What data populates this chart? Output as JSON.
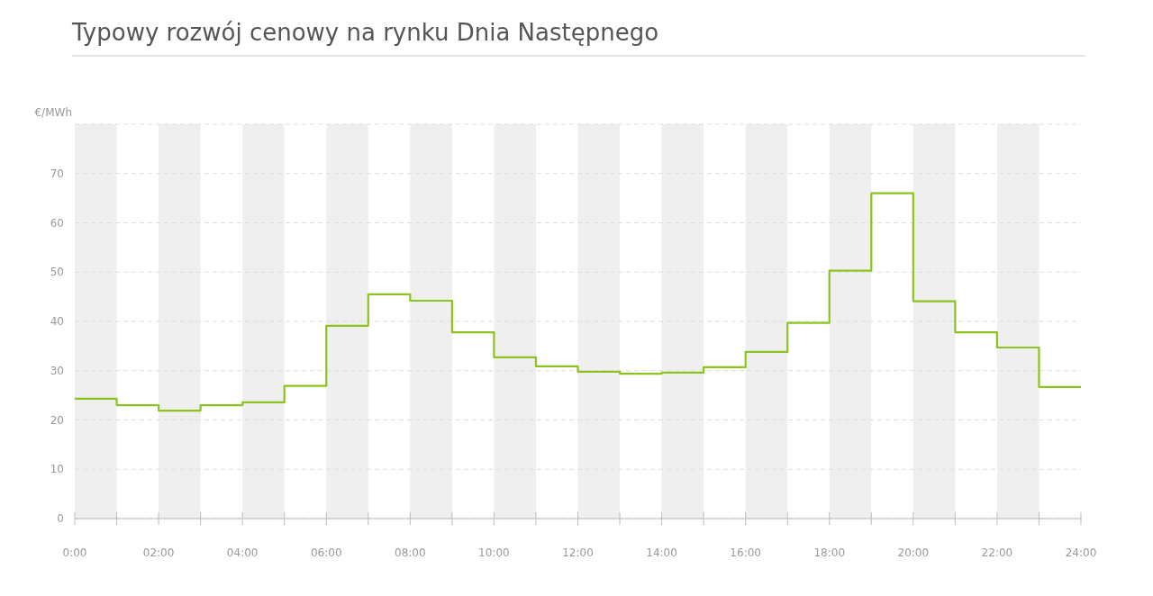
{
  "chart_data": {
    "type": "step",
    "title": "Typowy rozwój cenowy na rynku Dnia Następnego",
    "ylabel": "€/MWh",
    "x": [
      0,
      1,
      2,
      3,
      4,
      5,
      6,
      7,
      8,
      9,
      10,
      11,
      12,
      13,
      14,
      15,
      16,
      17,
      18,
      19,
      20,
      21,
      22,
      23,
      24
    ],
    "series": [
      {
        "color": "#8cc31e",
        "values": [
          24.3,
          23.0,
          21.9,
          23.0,
          23.6,
          26.9,
          39.1,
          45.5,
          44.2,
          37.8,
          32.7,
          30.9,
          29.8,
          29.4,
          29.6,
          30.7,
          33.8,
          39.7,
          50.3,
          66.0,
          44.1,
          37.8,
          34.7,
          26.7,
          26.7
        ]
      }
    ],
    "xlim": [
      0,
      24
    ],
    "xticks": [
      {
        "value": 0,
        "label": "0:00"
      },
      {
        "value": 1,
        "label": null
      },
      {
        "value": 2,
        "label": "02:00"
      },
      {
        "value": 3,
        "label": null
      },
      {
        "value": 4,
        "label": "04:00"
      },
      {
        "value": 5,
        "label": null
      },
      {
        "value": 6,
        "label": "06:00"
      },
      {
        "value": 7,
        "label": null
      },
      {
        "value": 8,
        "label": "08:00"
      },
      {
        "value": 9,
        "label": null
      },
      {
        "value": 10,
        "label": "10:00"
      },
      {
        "value": 11,
        "label": null
      },
      {
        "value": 12,
        "label": "12:00"
      },
      {
        "value": 13,
        "label": null
      },
      {
        "value": 14,
        "label": "14:00"
      },
      {
        "value": 15,
        "label": null
      },
      {
        "value": 16,
        "label": "16:00"
      },
      {
        "value": 17,
        "label": null
      },
      {
        "value": 18,
        "label": "18:00"
      },
      {
        "value": 19,
        "label": null
      },
      {
        "value": 20,
        "label": "20:00"
      },
      {
        "value": 21,
        "label": null
      },
      {
        "value": 22,
        "label": "22:00"
      },
      {
        "value": 23,
        "label": null
      },
      {
        "value": 24,
        "label": "24:00"
      }
    ],
    "ylim": [
      0,
      80
    ],
    "yticks": [
      0,
      10,
      20,
      30,
      40,
      50,
      60,
      70,
      {
        "value": 80,
        "label": null
      }
    ],
    "grid": "y",
    "bands": [
      {
        "axis": "x",
        "from": 0,
        "to": 1,
        "color": "#efefef"
      },
      {
        "axis": "x",
        "from": 2,
        "to": 3,
        "color": "#efefef"
      },
      {
        "axis": "x",
        "from": 4,
        "to": 5,
        "color": "#efefef"
      },
      {
        "axis": "x",
        "from": 6,
        "to": 7,
        "color": "#efefef"
      },
      {
        "axis": "x",
        "from": 8,
        "to": 9,
        "color": "#efefef"
      },
      {
        "axis": "x",
        "from": 10,
        "to": 11,
        "color": "#efefef"
      },
      {
        "axis": "x",
        "from": 12,
        "to": 13,
        "color": "#efefef"
      },
      {
        "axis": "x",
        "from": 14,
        "to": 15,
        "color": "#efefef"
      },
      {
        "axis": "x",
        "from": 16,
        "to": 17,
        "color": "#efefef"
      },
      {
        "axis": "x",
        "from": 18,
        "to": 19,
        "color": "#efefef"
      },
      {
        "axis": "x",
        "from": 20,
        "to": 21,
        "color": "#efefef"
      },
      {
        "axis": "x",
        "from": 22,
        "to": 23,
        "color": "#efefef"
      }
    ]
  }
}
